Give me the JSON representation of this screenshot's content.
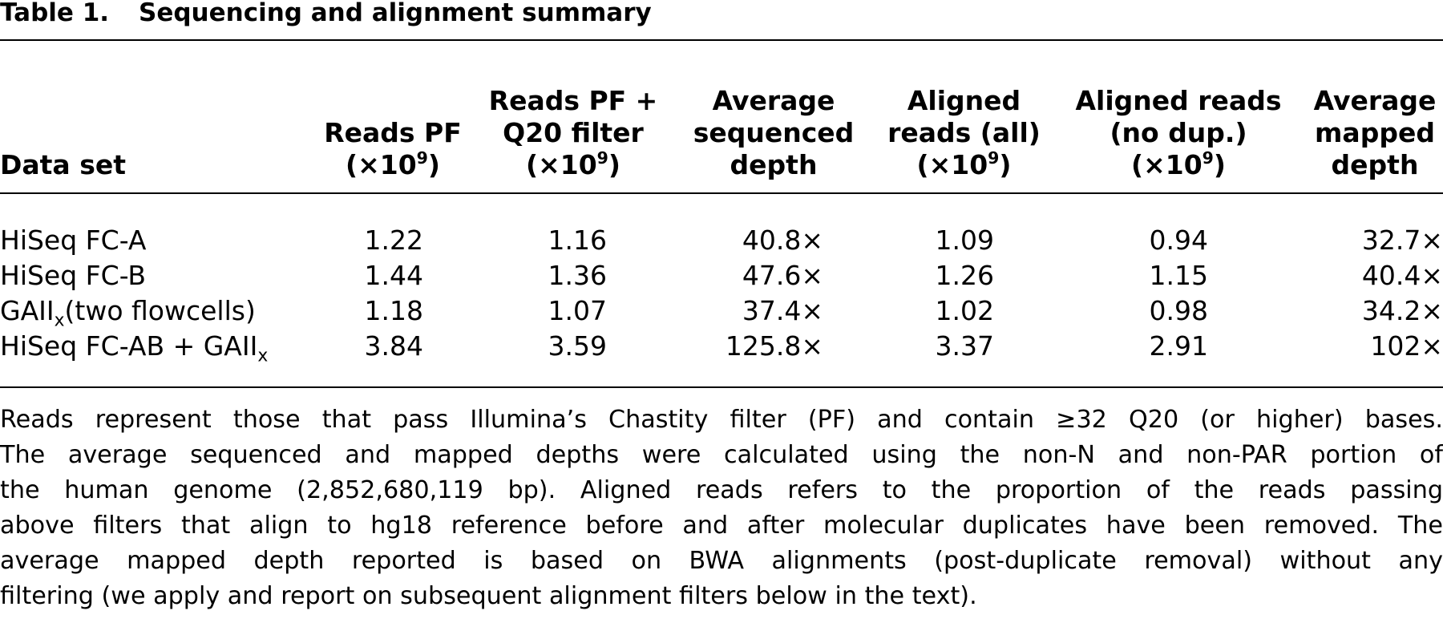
{
  "title": {
    "label": "Table 1.",
    "text": "Sequencing and alignment summary"
  },
  "header": {
    "dataset": "Data set",
    "reads_pf": {
      "line1": "Reads PF",
      "line2": "(×10",
      "exp": "9",
      "close": ")"
    },
    "reads_q20": {
      "line1": "Reads PF +",
      "line2": "Q20 filter",
      "line3": "(×10",
      "exp": "9",
      "close": ")"
    },
    "avg_seq_depth": {
      "line1": "Average",
      "line2": "sequenced",
      "line3": "depth"
    },
    "aligned_all": {
      "line1": "Aligned",
      "line2": "reads (all)",
      "line3": "(×10",
      "exp": "9",
      "close": ")"
    },
    "aligned_nodup": {
      "line1": "Aligned reads",
      "line2": "(no dup.)",
      "line3": "(×10",
      "exp": "9",
      "close": ")"
    },
    "avg_map_depth": {
      "line1": "Average",
      "line2": "mapped",
      "line3": "depth"
    }
  },
  "rows": [
    {
      "name": "HiSeq FC-A",
      "name_sub": "",
      "name_tail": "",
      "reads_pf": "1.22",
      "reads_q20": "1.16",
      "avg_seq_depth": "40.8×",
      "aligned_all": "1.09",
      "aligned_nodup": "0.94",
      "avg_map_depth": "32.7×"
    },
    {
      "name": "HiSeq FC-B",
      "name_sub": "",
      "name_tail": "",
      "reads_pf": "1.44",
      "reads_q20": "1.36",
      "avg_seq_depth": "47.6×",
      "aligned_all": "1.26",
      "aligned_nodup": "1.15",
      "avg_map_depth": "40.4×"
    },
    {
      "name": "GAII",
      "name_sub": "x",
      "name_tail": "(two flowcells)",
      "reads_pf": "1.18",
      "reads_q20": "1.07",
      "avg_seq_depth": "37.4×",
      "aligned_all": "1.02",
      "aligned_nodup": "0.98",
      "avg_map_depth": "34.2×"
    },
    {
      "name": "HiSeq FC-AB + GAII",
      "name_sub": "x",
      "name_tail": "",
      "reads_pf": "3.84",
      "reads_q20": "3.59",
      "avg_seq_depth": "125.8×",
      "aligned_all": "3.37",
      "aligned_nodup": "2.91",
      "avg_map_depth": "102×"
    }
  ],
  "footnote": {
    "line1": "Reads represent those that pass Illumina’s Chastity filter (PF) and contain ≥32 Q20 (or higher) bases.",
    "line2": "The average sequenced and mapped depths were calculated using the non-N and non-PAR portion of",
    "line3": "the human genome (2,852,680,119 bp). Aligned reads refers to the proportion of the reads passing",
    "line4": "above filters that align to hg18 reference before and after molecular duplicates have been removed. The",
    "line5": "average mapped depth reported is based on BWA alignments (post-duplicate removal) without any",
    "line6": "filtering (we apply and report on subsequent alignment filters below in the text)."
  }
}
